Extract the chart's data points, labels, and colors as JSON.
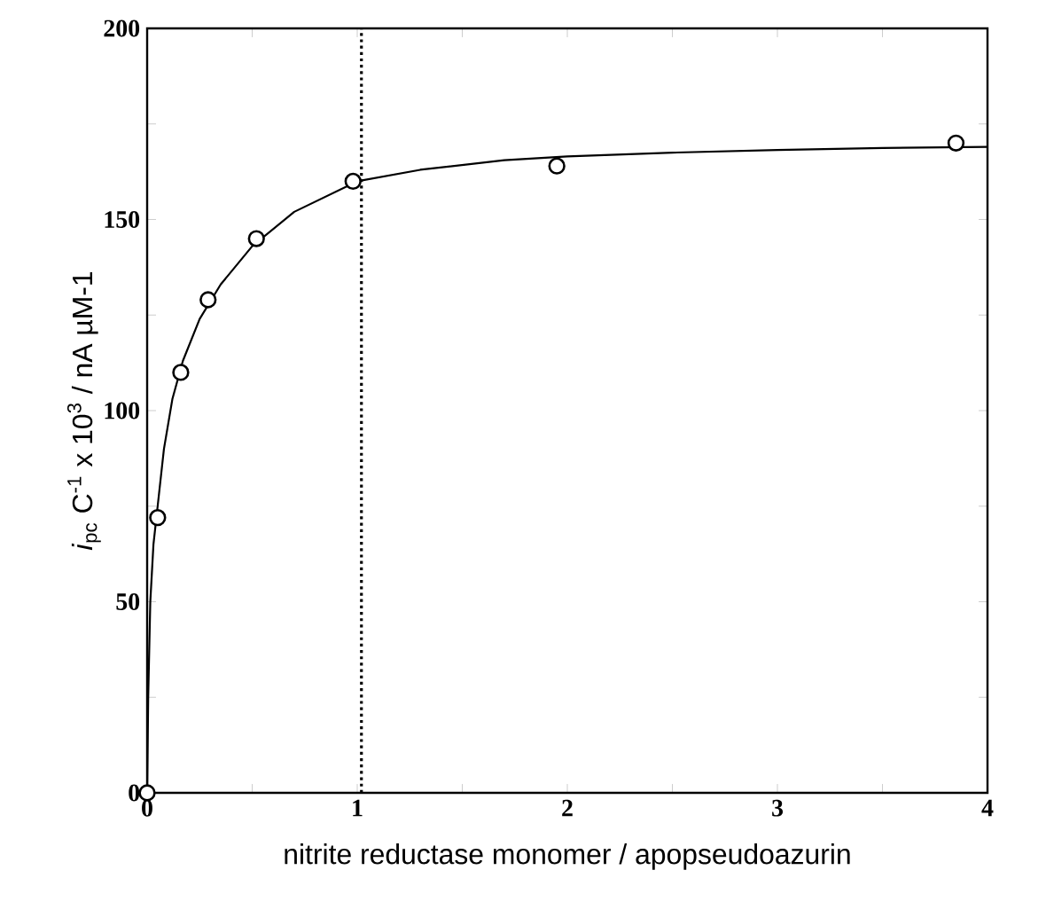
{
  "chart_data": {
    "type": "scatter",
    "xlabel": "nitrite reductase monomer / apopseudoazurin",
    "ylabel": "*i*$_{pc}$ C$^{-1}$ x 10$^{3}$ / nA µM-1",
    "xlim": [
      0,
      4
    ],
    "ylim": [
      0,
      200
    ],
    "xticks": [
      0,
      {
        "value": 0.5,
        "label": null
      },
      1,
      {
        "value": 1.5,
        "label": null
      },
      2,
      {
        "value": 2.5,
        "label": null
      },
      3,
      {
        "value": 3.5,
        "label": null
      },
      4
    ],
    "yticks": [
      0,
      {
        "value": 25,
        "label": null
      },
      50,
      {
        "value": 75,
        "label": null
      },
      100,
      {
        "value": 125,
        "label": null
      },
      150,
      {
        "value": 175,
        "label": null
      },
      200
    ],
    "grid": false,
    "series": [
      {
        "marker": "circle",
        "color": "#000000",
        "x": [
          0,
          0.05,
          0.16,
          0.29,
          0.52,
          0.98,
          1.95,
          3.85
        ],
        "values": [
          0,
          72,
          110,
          129,
          145,
          160,
          164,
          170
        ]
      },
      {
        "type": "line",
        "marker": "none",
        "line_style": "solid",
        "color": "#000000",
        "x": [
          0,
          0.005,
          0.015,
          0.03,
          0.05,
          0.08,
          0.12,
          0.17,
          0.25,
          0.35,
          0.5,
          0.7,
          1,
          1.3,
          1.7,
          2,
          2.5,
          3,
          3.5,
          4
        ],
        "values": [
          0,
          25,
          50,
          65,
          75,
          90,
          103,
          113,
          124,
          133,
          143,
          152,
          160,
          163,
          165.5,
          166.5,
          167.5,
          168.2,
          168.7,
          169
        ]
      }
    ],
    "ref_lines": [
      {
        "axis": "x",
        "value": 1.02,
        "line_style": "dotted",
        "color": "#000000"
      }
    ]
  }
}
